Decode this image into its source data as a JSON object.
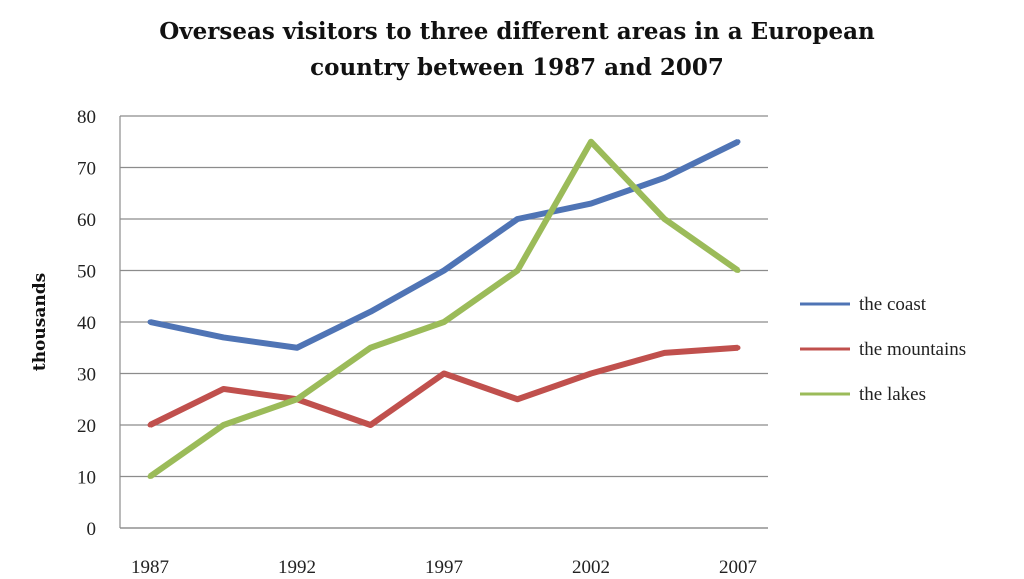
{
  "chart_data": {
    "type": "line",
    "title_line1": "Overseas visitors to three different areas in a European",
    "title_line2": "country between 1987 and 2007",
    "xlabel": "",
    "ylabel": "thousands",
    "x": [
      1987,
      1989.5,
      1992,
      1994.5,
      1997,
      1999.5,
      2002,
      2004.5,
      2007
    ],
    "x_tick_labels": [
      "1987",
      "1992",
      "1997",
      "2002",
      "2007"
    ],
    "x_tick_values": [
      1987,
      1992,
      1997,
      2002,
      2007
    ],
    "y_ticks": [
      0,
      10,
      20,
      30,
      40,
      50,
      60,
      70,
      80
    ],
    "ylim": [
      0,
      80
    ],
    "grid": "horizontal",
    "legend_position": "right",
    "series": [
      {
        "name": "the coast",
        "color": "#4f74b5",
        "values": [
          40,
          37,
          35,
          42,
          50,
          60,
          63,
          68,
          75
        ]
      },
      {
        "name": "the mountains",
        "color": "#c0504d",
        "values": [
          20,
          27,
          25,
          20,
          30,
          25,
          30,
          34,
          35
        ]
      },
      {
        "name": "the lakes",
        "color": "#9bbb59",
        "values": [
          10,
          20,
          25,
          35,
          40,
          50,
          75,
          60,
          50
        ]
      }
    ]
  }
}
